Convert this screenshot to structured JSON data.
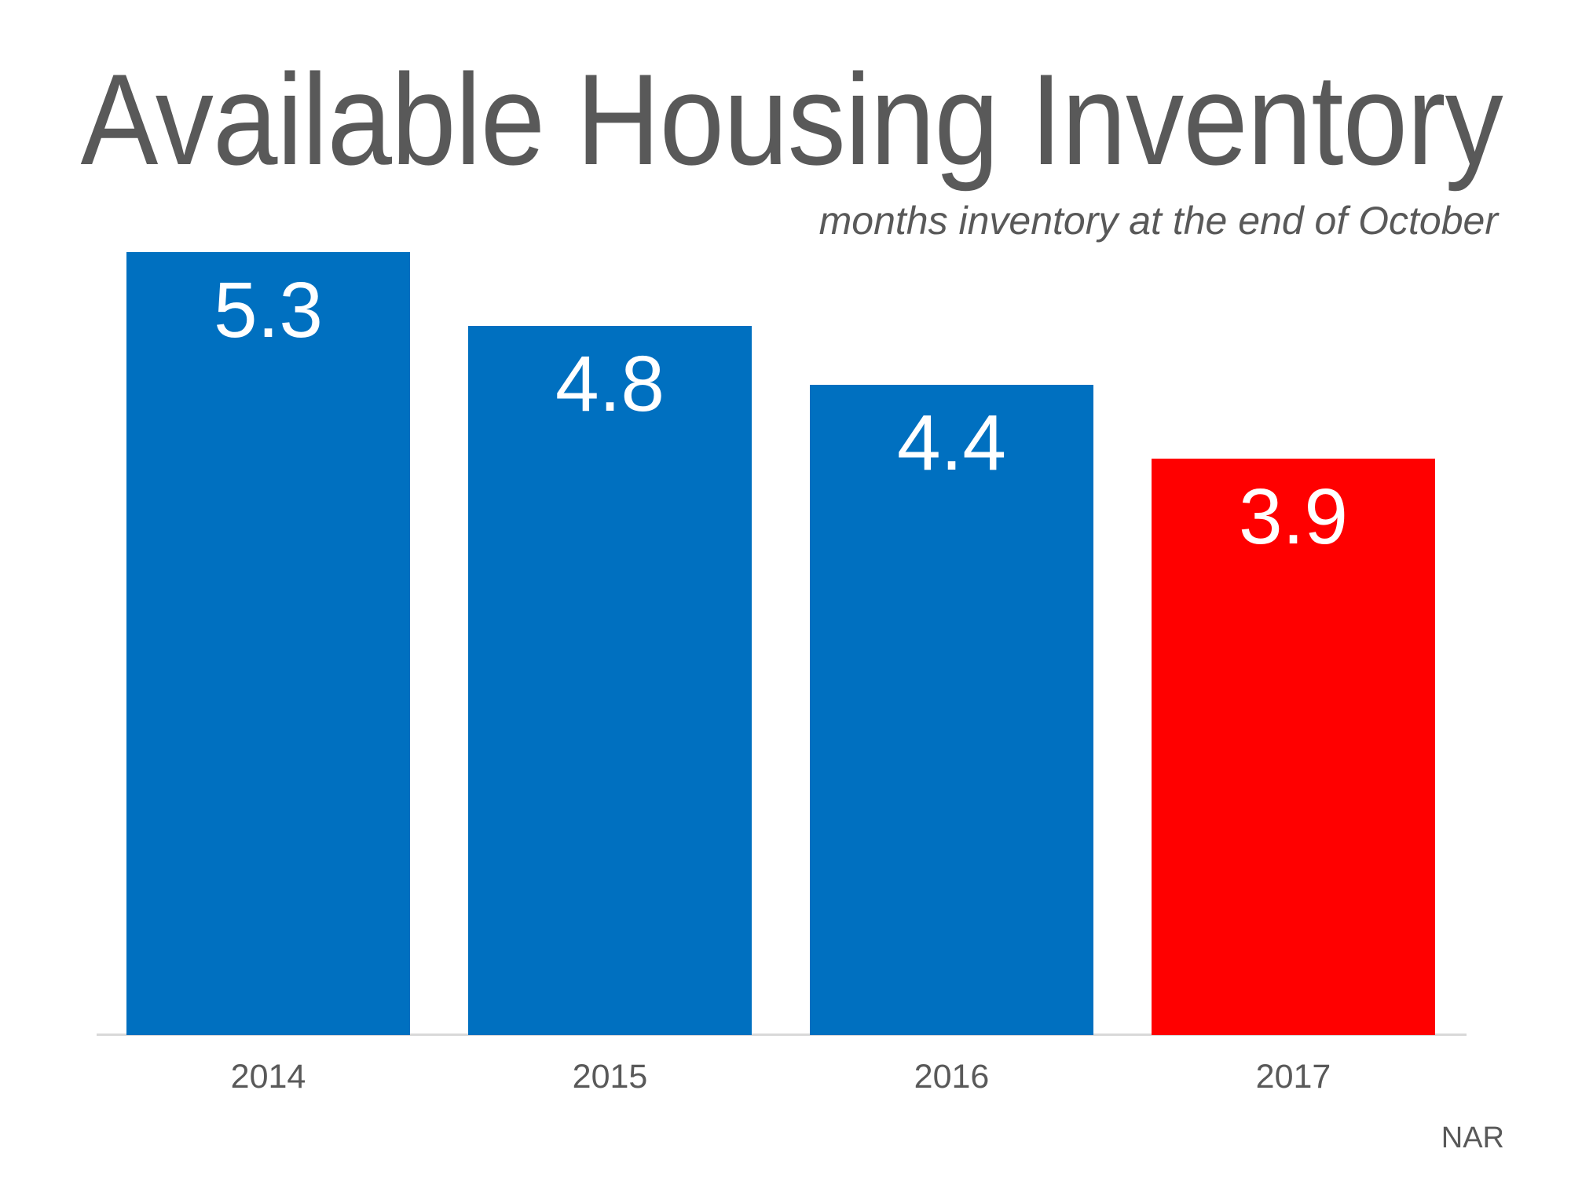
{
  "page": {
    "background_color": "#FFFFFF"
  },
  "chart_data": {
    "type": "bar",
    "title": "Available Housing Inventory",
    "subtitle": "months inventory at the end of October",
    "categories": [
      "2014",
      "2015",
      "2016",
      "2017"
    ],
    "values": [
      5.3,
      4.8,
      4.4,
      3.9
    ],
    "data_labels": [
      "5.3",
      "4.8",
      "4.4",
      "3.9"
    ],
    "bar_colors": [
      "#0070C0",
      "#0070C0",
      "#0070C0",
      "#FF0000"
    ],
    "highlight_index": 3,
    "data_label_color": "#FFFFFF",
    "data_label_position": "inside-top",
    "xlabel": "",
    "ylabel": "",
    "ylim": [
      0,
      5.7
    ],
    "grid": false,
    "legend": "none",
    "axis_line_color": "#D9D9D9",
    "text_color": "#595959",
    "source": "NAR"
  }
}
